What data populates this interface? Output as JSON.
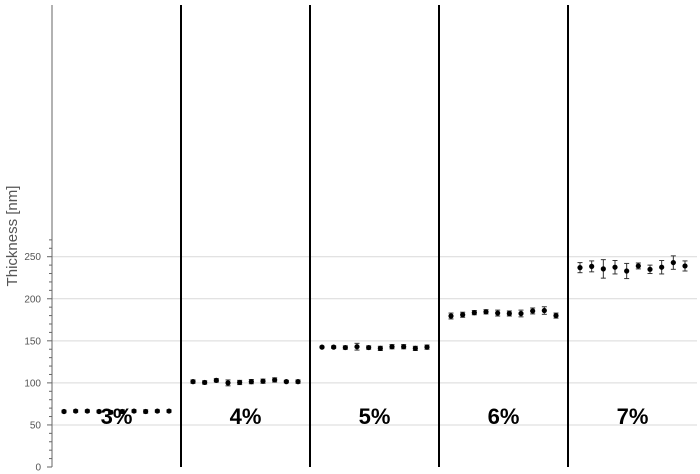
{
  "chart_data": {
    "type": "scatter",
    "ylabel": "Thickness [nm]",
    "ylim": [
      0,
      275
    ],
    "yticks": [
      0,
      50,
      100,
      150,
      200,
      250
    ],
    "grid": true,
    "error_bars": true,
    "groups": [
      {
        "label": "3%",
        "values": [
          66,
          66.5,
          66.5,
          66,
          65,
          66,
          66.5,
          66,
          66.5,
          66.5
        ],
        "errors": [
          1.5,
          1.5,
          1.5,
          1.5,
          2,
          2,
          1.5,
          2,
          1.5,
          1.5
        ]
      },
      {
        "label": "4%",
        "values": [
          101.5,
          100.5,
          103,
          100,
          100.5,
          101.5,
          102,
          103.5,
          101.5,
          101.5
        ],
        "errors": [
          2,
          2,
          2,
          3.5,
          2.5,
          2.5,
          2.5,
          2.5,
          1.5,
          2
        ]
      },
      {
        "label": "5%",
        "values": [
          142.5,
          142.5,
          142,
          143,
          142,
          141,
          143,
          143,
          141,
          142.5
        ],
        "errors": [
          1,
          1.5,
          2,
          4,
          2,
          2.5,
          2.5,
          2.5,
          2.5,
          2.5
        ]
      },
      {
        "label": "6%",
        "values": [
          179.5,
          181,
          183.5,
          184.5,
          183,
          182.5,
          182.5,
          185.5,
          186,
          180
        ],
        "errors": [
          3.5,
          3,
          2.5,
          2.5,
          3.5,
          3,
          4,
          3.5,
          4.5,
          3
        ]
      },
      {
        "label": "7%",
        "values": [
          237,
          238.5,
          235.5,
          237.5,
          233,
          239,
          235,
          237.5,
          243,
          239
        ],
        "errors": [
          6,
          6.5,
          11,
          8,
          9,
          3.5,
          5,
          8,
          8,
          6
        ]
      }
    ]
  }
}
